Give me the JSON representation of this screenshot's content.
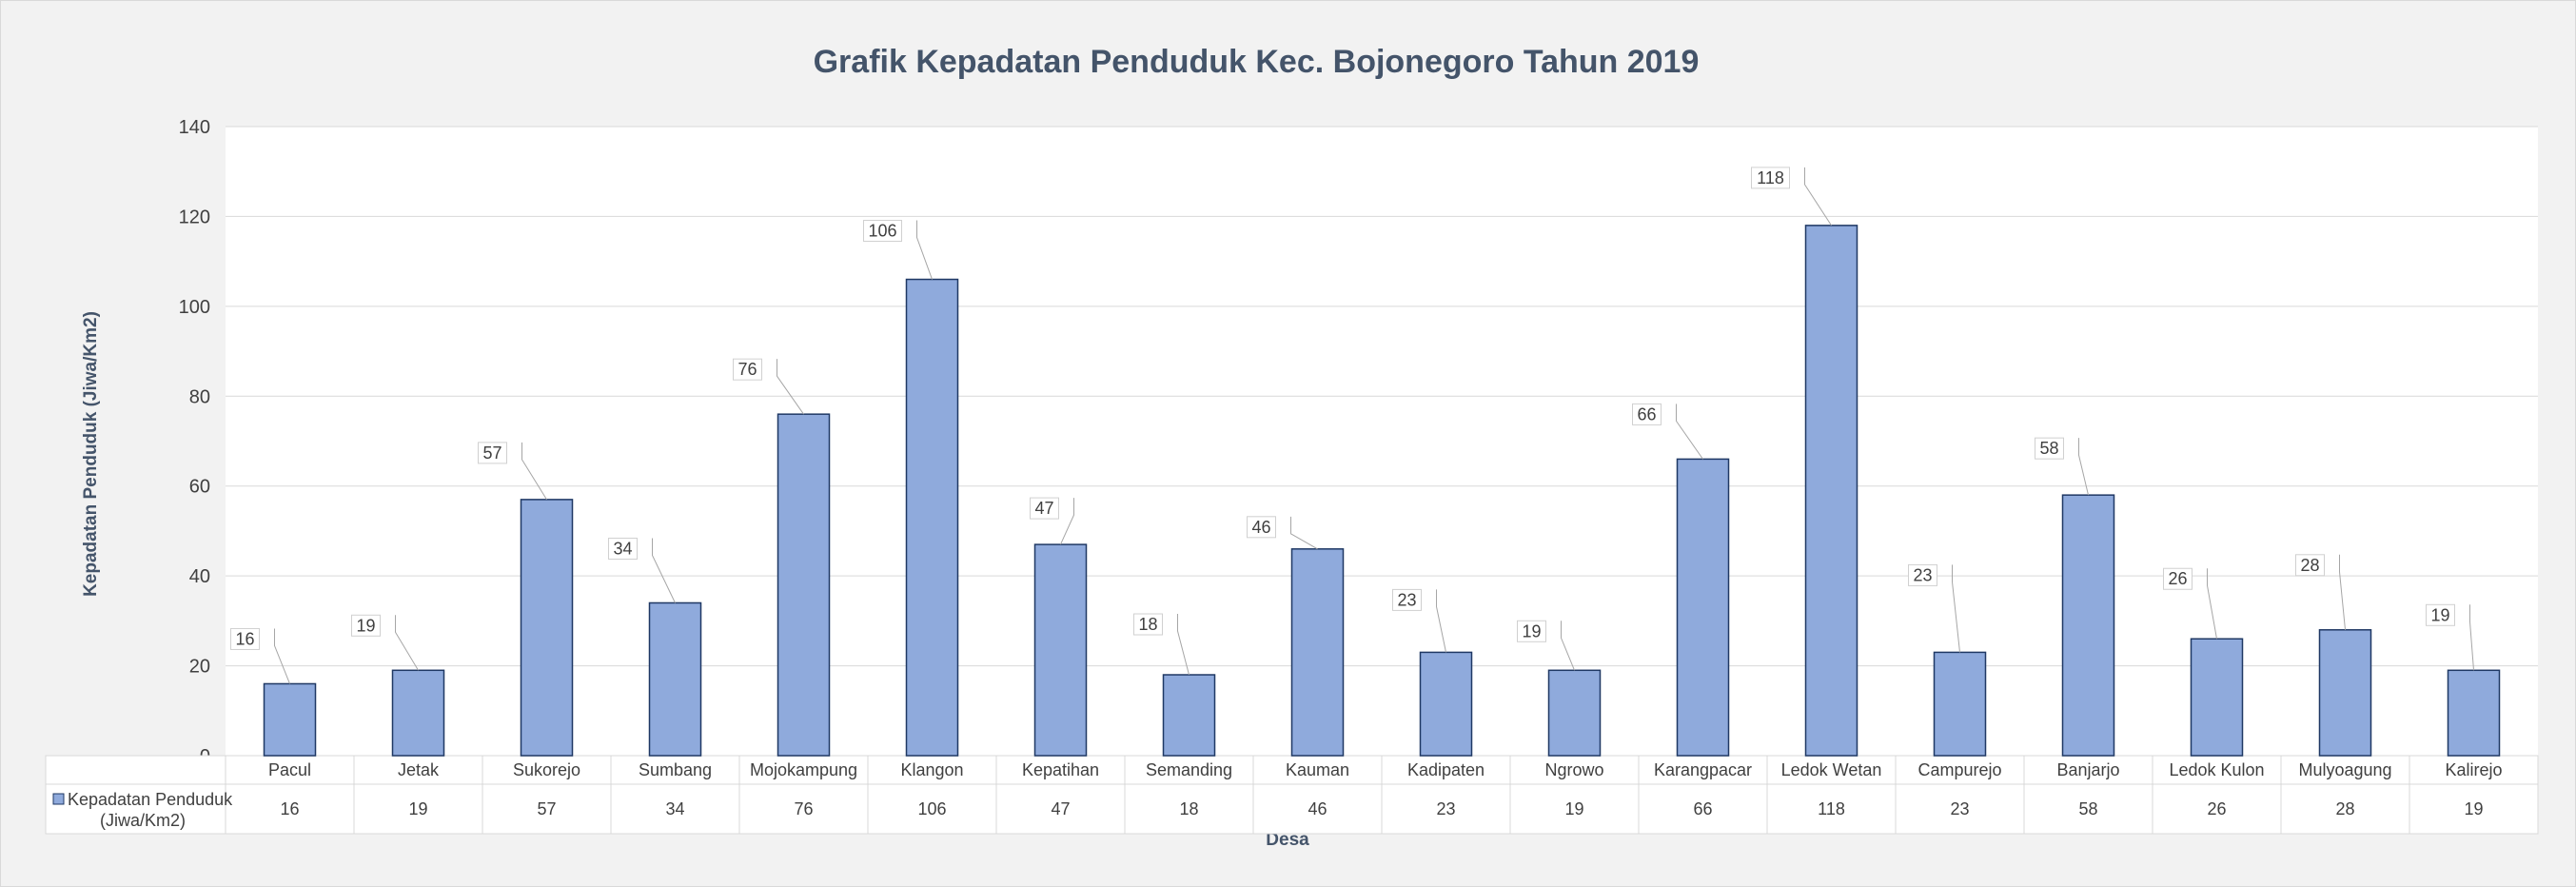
{
  "chart_data": {
    "type": "bar",
    "title": "Grafik Kepadatan Penduduk Kec. Bojonegoro Tahun 2019",
    "xlabel": "Desa",
    "ylabel": "Kepadatan Penduduk (Jiwa/Km2)",
    "ylim": [
      0,
      140
    ],
    "yticks": [
      0,
      20,
      40,
      60,
      80,
      100,
      120,
      140
    ],
    "grid": true,
    "categories": [
      "Pacul",
      "Jetak",
      "Sukorejo",
      "Sumbang",
      "Mojokampung",
      "Klangon",
      "Kepatihan",
      "Semanding",
      "Kauman",
      "Kadipaten",
      "Ngrowo",
      "Karangpacar",
      "Ledok  Wetan",
      "Campurejo",
      "Banjarjo",
      "Ledok Kulon",
      "Mulyoagung",
      "Kalirejo"
    ],
    "series": [
      {
        "name": "Kepadatan Penduduk (Jiwa/Km2)",
        "name_lines": [
          "Kepadatan Penduduk",
          "(Jiwa/Km2)"
        ],
        "color": "#8faadc",
        "values": [
          16,
          19,
          57,
          34,
          76,
          106,
          47,
          18,
          46,
          23,
          19,
          66,
          118,
          23,
          58,
          26,
          28,
          19
        ]
      }
    ],
    "data_table": true
  }
}
